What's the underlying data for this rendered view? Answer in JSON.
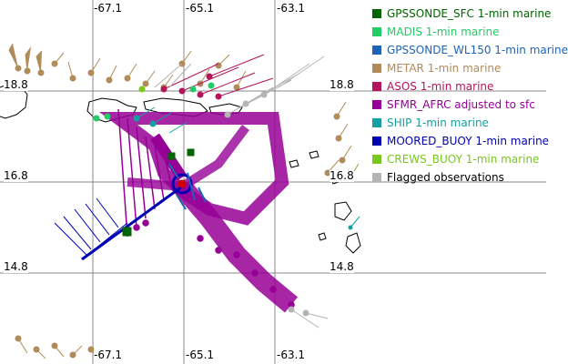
{
  "axes": {
    "x_ticks_top": [
      "-67.1",
      "-65.1",
      "-63.1"
    ],
    "x_ticks_bottom": [
      "-67.1",
      "-65.1",
      "-63.1"
    ],
    "y_ticks_left": [
      "18.8",
      "16.8",
      "14.8"
    ],
    "y_ticks_right": [
      "18.8",
      "16.8",
      "14.8"
    ]
  },
  "legend": [
    {
      "label": "GPSSONDE_SFC 1-min marine",
      "color": "#006400"
    },
    {
      "label": "MADIS 1-min marine",
      "color": "#22cc66"
    },
    {
      "label": "GPSSONDE_WL150 1-min marine",
      "color": "#1e64b4"
    },
    {
      "label": "METAR 1-min marine",
      "color": "#b08c5a"
    },
    {
      "label": "ASOS 1-min marine",
      "color": "#b4145a"
    },
    {
      "label": "SFMR_AFRC adjusted to sfc",
      "color": "#960096"
    },
    {
      "label": "SHIP 1-min marine",
      "color": "#14a0a0"
    },
    {
      "label": "MOORED_BUOY 1-min marine",
      "color": "#0000b4"
    },
    {
      "label": "CREWS_BUOY 1-min marine",
      "color": "#78c81e"
    },
    {
      "label": "Flagged observations",
      "color": "#b4b4b4"
    }
  ]
}
